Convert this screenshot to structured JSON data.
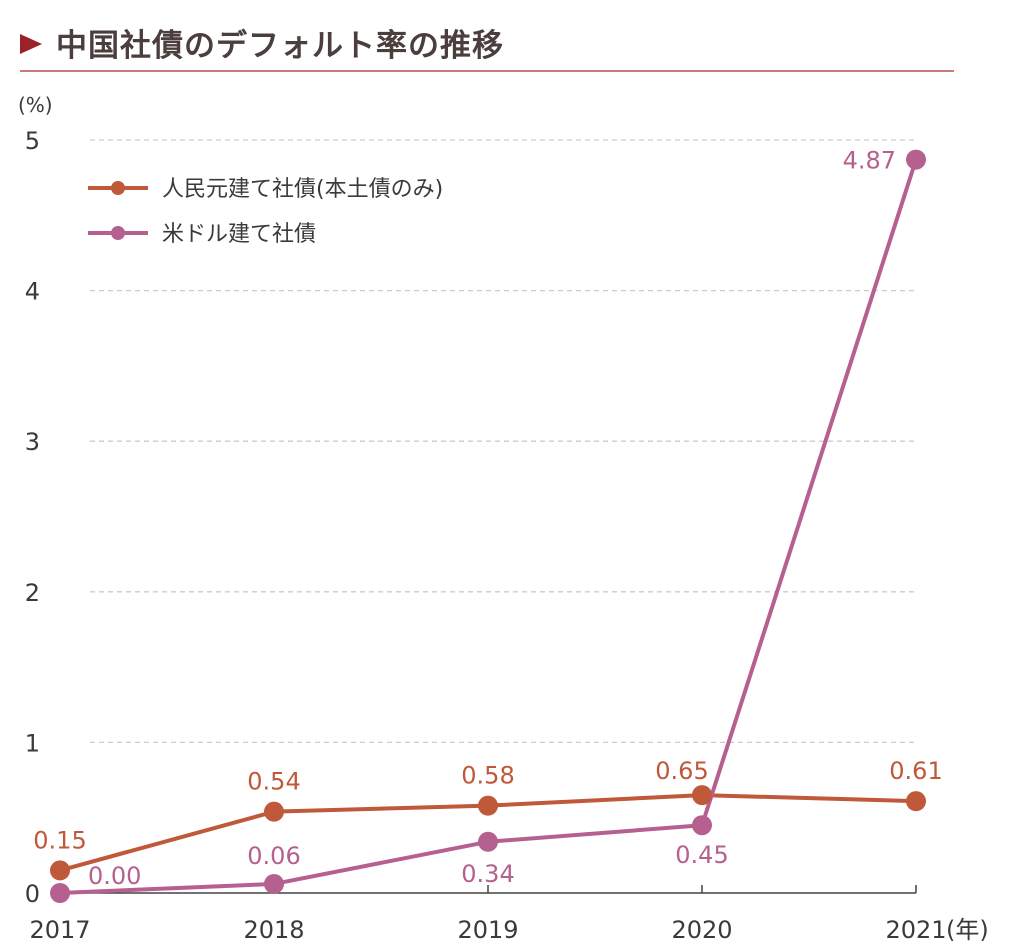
{
  "title": "中国社債のデフォルト率の推移",
  "colors": {
    "title_arrow": "#9b2226",
    "title_rule": "#c97b7b",
    "series_cny": "#c0583a",
    "series_usd": "#b5608f",
    "grid": "#cccccc",
    "axis": "#444444"
  },
  "chart_data": {
    "type": "line",
    "title": "中国社債のデフォルト率の推移",
    "ylabel": "(%)",
    "xlabel": "(年)",
    "x": [
      "2017",
      "2018",
      "2019",
      "2020",
      "2021"
    ],
    "ylim": [
      0,
      5
    ],
    "yticks": [
      0,
      1,
      2,
      3,
      4,
      5
    ],
    "grid": "horizontal-dashed",
    "legend_position": "top-left",
    "series": [
      {
        "name": "人民元建て社債(本土債のみ)",
        "color": "#c0583a",
        "values": [
          0.15,
          0.54,
          0.58,
          0.65,
          0.61
        ],
        "labels": [
          "0.15",
          "0.54",
          "0.58",
          "0.65",
          "0.61"
        ]
      },
      {
        "name": "米ドル建て社債",
        "color": "#b5608f",
        "values": [
          0.0,
          0.06,
          0.34,
          0.45,
          4.87
        ],
        "labels": [
          "0.00",
          "0.06",
          "0.34",
          "0.45",
          "4.87"
        ]
      }
    ]
  }
}
